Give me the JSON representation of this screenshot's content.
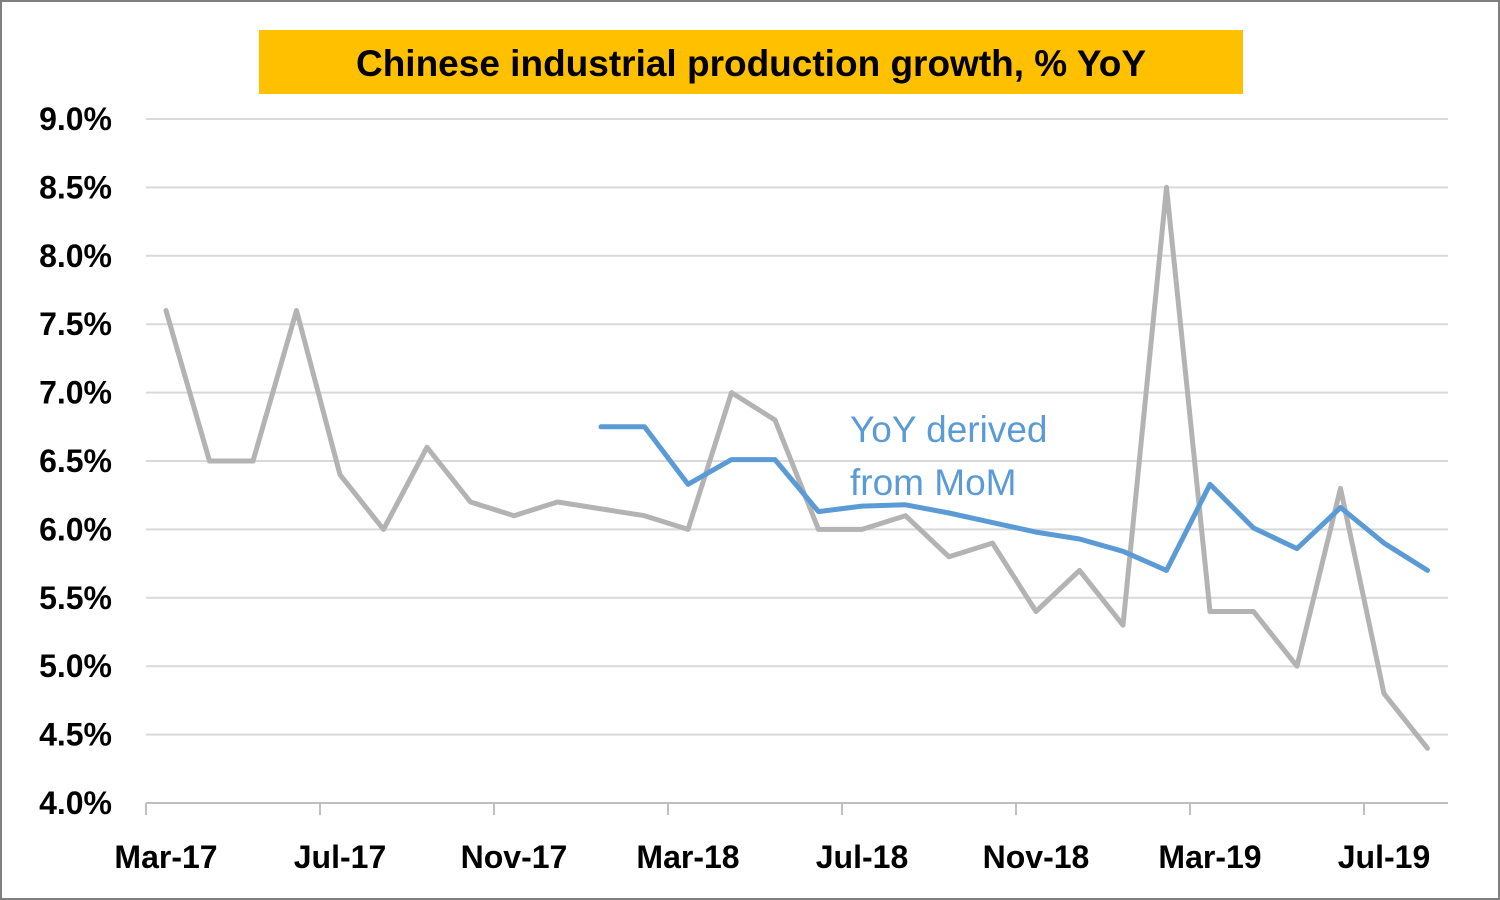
{
  "colors": {
    "title_bg": "#ffc000",
    "series_gray": "#b3b3b3",
    "series_blue": "#5b9bd5",
    "grid": "#d9d9d9",
    "axis": "#bfbfbf"
  },
  "chart_data": {
    "type": "line",
    "title": "Chinese industrial production growth, % YoY",
    "xlabel": "",
    "ylabel": "",
    "ylim": [
      4.0,
      9.0
    ],
    "y_ticks": [
      "9.0%",
      "8.5%",
      "8.0%",
      "7.5%",
      "7.0%",
      "6.5%",
      "6.0%",
      "5.5%",
      "5.0%",
      "4.5%",
      "4.0%"
    ],
    "x_tick_labels": [
      "Mar-17",
      "Jul-17",
      "Nov-17",
      "Mar-18",
      "Jul-18",
      "Nov-18",
      "Mar-19",
      "Jul-19"
    ],
    "x": [
      "Mar-17",
      "Apr-17",
      "May-17",
      "Jun-17",
      "Jul-17",
      "Aug-17",
      "Sep-17",
      "Oct-17",
      "Nov-17",
      "Dec-17",
      "Jan-18",
      "Feb-18",
      "Mar-18",
      "Apr-18",
      "May-18",
      "Jun-18",
      "Jul-18",
      "Aug-18",
      "Sep-18",
      "Oct-18",
      "Nov-18",
      "Dec-18",
      "Jan-19",
      "Feb-19",
      "Mar-19",
      "Apr-19",
      "May-19",
      "Jun-19",
      "Jul-19",
      "Aug-19"
    ],
    "grid": true,
    "annotation": {
      "lines": [
        "YoY derived",
        "from MoM"
      ]
    },
    "series": [
      {
        "color": "#b3b3b3",
        "values": [
          7.6,
          6.5,
          6.5,
          7.6,
          6.4,
          6.0,
          6.6,
          6.2,
          6.1,
          6.2,
          6.15,
          6.1,
          6.0,
          7.0,
          6.8,
          6.0,
          6.0,
          6.1,
          5.8,
          5.9,
          5.4,
          5.7,
          5.3,
          8.5,
          5.4,
          5.4,
          5.0,
          6.3,
          4.8,
          4.4
        ]
      },
      {
        "color": "#5b9bd5",
        "values": [
          null,
          null,
          null,
          null,
          null,
          null,
          null,
          null,
          null,
          null,
          6.75,
          6.75,
          6.33,
          6.51,
          6.51,
          6.13,
          6.17,
          6.18,
          6.12,
          6.05,
          5.98,
          5.93,
          5.84,
          5.7,
          6.33,
          6.01,
          5.86,
          6.16,
          5.9,
          5.7
        ]
      }
    ]
  }
}
